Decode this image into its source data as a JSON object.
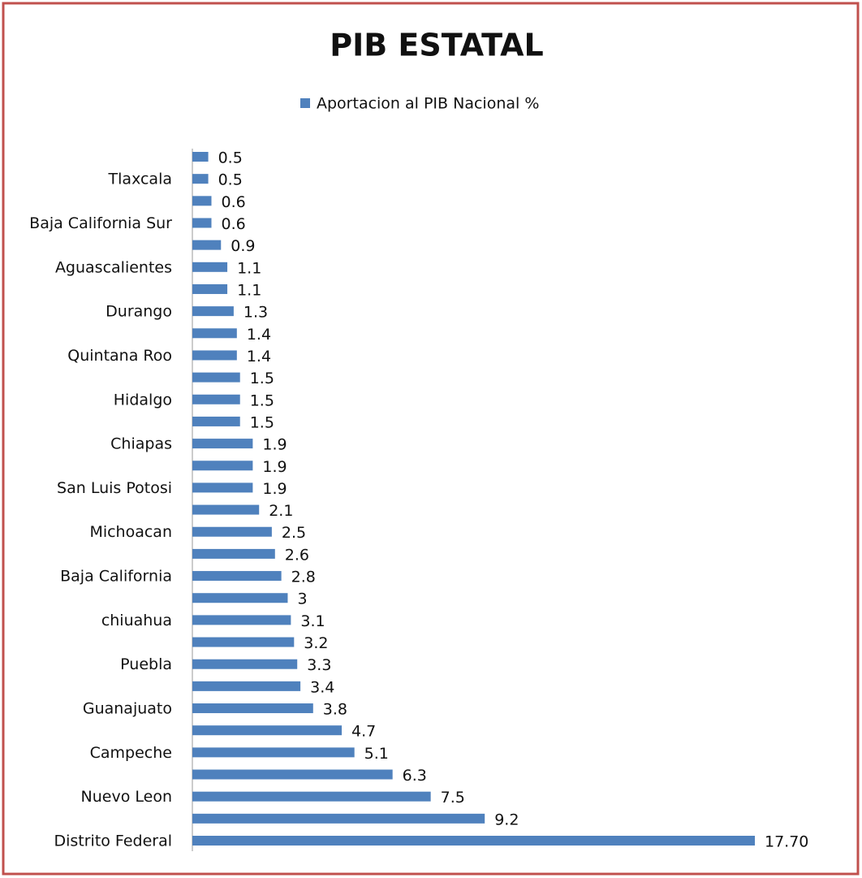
{
  "chart_data": {
    "type": "barh",
    "title": "PIB ESTATAL",
    "categories": [
      null,
      "Tlaxcala",
      null,
      "Baja California  Sur",
      null,
      "Aguascalientes",
      null,
      "Durango",
      null,
      "Quintana Roo",
      null,
      "Hidalgo",
      null,
      "Chiapas",
      null,
      "San Luis Potosi",
      null,
      "Michoacan",
      null,
      "Baja California",
      null,
      "chiuahua",
      null,
      "Puebla",
      null,
      "Guanajuato",
      null,
      "Campeche",
      null,
      "Nuevo Leon",
      null,
      "Distrito Federal"
    ],
    "series": [
      {
        "name": "Aportacion al PIB  Nacional %",
        "color": "#4f81bd",
        "values": [
          0.5,
          0.5,
          0.6,
          0.6,
          0.9,
          1.1,
          1.1,
          1.3,
          1.4,
          1.4,
          1.5,
          1.5,
          1.5,
          1.9,
          1.9,
          1.9,
          2.1,
          2.5,
          2.6,
          2.8,
          3,
          3.1,
          3.2,
          3.3,
          3.4,
          3.8,
          4.7,
          5.1,
          6.3,
          7.5,
          9.2,
          17.7
        ],
        "value_labels": [
          "0.5",
          "0.5",
          "0.6",
          "0.6",
          "0.9",
          "1.1",
          "1.1",
          "1.3",
          "1.4",
          "1.4",
          "1.5",
          "1.5",
          "1.5",
          "1.9",
          "1.9",
          "1.9",
          "2.1",
          "2.5",
          "2.6",
          "2.8",
          "3",
          "3.1",
          "3.2",
          "3.3",
          "3.4",
          "3.8",
          "4.7",
          "5.1",
          "6.3",
          "7.5",
          "9.2",
          "17.70"
        ]
      }
    ],
    "legend": "top"
  }
}
